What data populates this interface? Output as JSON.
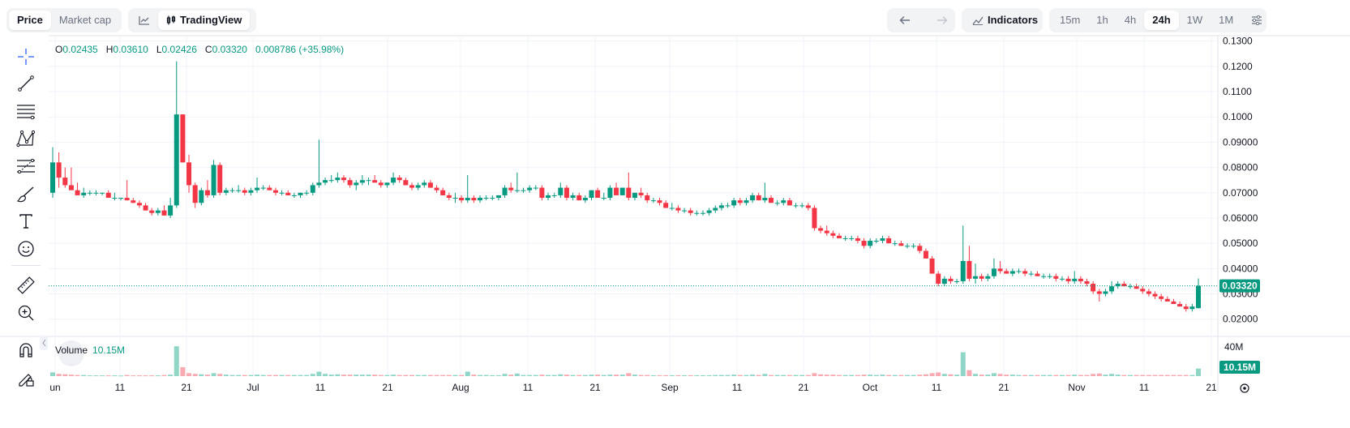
{
  "header": {
    "tabs": [
      {
        "label": "Price",
        "active": true
      },
      {
        "label": "Market cap",
        "active": false
      }
    ],
    "chart_style_label": "TradingView",
    "indicators_label": "Indicators",
    "timeframes": [
      {
        "label": "15m",
        "active": false
      },
      {
        "label": "1h",
        "active": false
      },
      {
        "label": "4h",
        "active": false
      },
      {
        "label": "24h",
        "active": true
      },
      {
        "label": "1W",
        "active": false
      },
      {
        "label": "1M",
        "active": false
      }
    ]
  },
  "toolbar": {
    "icons": [
      "crosshair-icon",
      "trend-line-icon",
      "horizontal-lines-icon",
      "pattern-icon",
      "fib-retracement-icon",
      "brush-icon",
      "text-icon",
      "emoji-icon",
      "ruler-icon",
      "zoom-in-icon",
      "magnet-icon",
      "lock-draw-icon"
    ]
  },
  "legend": {
    "o_label": "O",
    "o": "0.02435",
    "h_label": "H",
    "h": "0.03610",
    "l_label": "L",
    "l": "0.02426",
    "c_label": "C",
    "c": "0.03320",
    "change": "0.008786 (+35.98%)"
  },
  "volume_legend": {
    "label": "Volume",
    "value": "10.15M"
  },
  "colors": {
    "up": "#089981",
    "down": "#f23645",
    "up_vol": "#8fd6c6",
    "down_vol": "#f7aab2",
    "accent": "#2962ff"
  },
  "chart_data": {
    "type": "candlestick",
    "interval": "24h",
    "price_axis": {
      "ticks": [
        "0.1300",
        "0.1200",
        "0.1100",
        "0.1000",
        "0.09000",
        "0.08000",
        "0.07000",
        "0.06000",
        "0.05000",
        "0.04000",
        "0.03000",
        "0.02000"
      ],
      "range": [
        0.0135,
        0.1315
      ]
    },
    "volume_axis": {
      "ticks": [
        "40M"
      ],
      "max": "50M"
    },
    "last_price": "0.03320",
    "last_volume": "10.15M",
    "x_axis_labels": [
      "un",
      "11",
      "21",
      "Jul",
      "11",
      "21",
      "Aug",
      "11",
      "21",
      "Sep",
      "11",
      "21",
      "Oct",
      "11",
      "21",
      "Nov",
      "11",
      "21"
    ],
    "candles": [
      [
        0.07,
        0.088,
        0.068,
        0.082,
        5.0
      ],
      [
        0.082,
        0.086,
        0.072,
        0.076,
        3.0
      ],
      [
        0.076,
        0.08,
        0.072,
        0.073,
        2.5
      ],
      [
        0.073,
        0.08,
        0.071,
        0.071,
        2.0
      ],
      [
        0.071,
        0.074,
        0.069,
        0.069,
        1.5
      ],
      [
        0.069,
        0.072,
        0.068,
        0.07,
        1.5
      ],
      [
        0.07,
        0.071,
        0.069,
        0.07,
        1.0
      ],
      [
        0.07,
        0.071,
        0.069,
        0.07,
        1.0
      ],
      [
        0.07,
        0.07,
        0.069,
        0.07,
        1.0
      ],
      [
        0.07,
        0.071,
        0.068,
        0.068,
        1.0
      ],
      [
        0.068,
        0.07,
        0.067,
        0.068,
        1.0
      ],
      [
        0.068,
        0.068,
        0.067,
        0.068,
        0.8
      ],
      [
        0.068,
        0.075,
        0.067,
        0.067,
        1.5
      ],
      [
        0.067,
        0.068,
        0.066,
        0.066,
        1.0
      ],
      [
        0.066,
        0.067,
        0.064,
        0.065,
        1.0
      ],
      [
        0.065,
        0.066,
        0.063,
        0.063,
        1.0
      ],
      [
        0.063,
        0.064,
        0.061,
        0.062,
        1.0
      ],
      [
        0.062,
        0.064,
        0.061,
        0.063,
        1.0
      ],
      [
        0.063,
        0.065,
        0.061,
        0.061,
        1.5
      ],
      [
        0.061,
        0.068,
        0.06,
        0.065,
        2.0
      ],
      [
        0.065,
        0.122,
        0.064,
        0.101,
        40.0
      ],
      [
        0.101,
        0.101,
        0.082,
        0.082,
        12.0
      ],
      [
        0.082,
        0.085,
        0.07,
        0.073,
        4.0
      ],
      [
        0.073,
        0.074,
        0.064,
        0.066,
        3.0
      ],
      [
        0.066,
        0.072,
        0.065,
        0.071,
        2.5
      ],
      [
        0.071,
        0.075,
        0.068,
        0.069,
        2.0
      ],
      [
        0.069,
        0.083,
        0.068,
        0.081,
        4.0
      ],
      [
        0.081,
        0.082,
        0.069,
        0.07,
        3.0
      ],
      [
        0.07,
        0.072,
        0.069,
        0.071,
        2.0
      ],
      [
        0.071,
        0.072,
        0.07,
        0.071,
        1.5
      ],
      [
        0.071,
        0.073,
        0.07,
        0.071,
        1.5
      ],
      [
        0.071,
        0.072,
        0.069,
        0.07,
        1.5
      ],
      [
        0.07,
        0.072,
        0.069,
        0.071,
        1.5
      ],
      [
        0.071,
        0.076,
        0.07,
        0.072,
        2.0
      ],
      [
        0.072,
        0.073,
        0.071,
        0.072,
        1.5
      ],
      [
        0.072,
        0.073,
        0.071,
        0.071,
        1.5
      ],
      [
        0.071,
        0.072,
        0.069,
        0.07,
        1.5
      ],
      [
        0.07,
        0.071,
        0.069,
        0.07,
        1.5
      ],
      [
        0.07,
        0.071,
        0.069,
        0.069,
        1.5
      ],
      [
        0.069,
        0.07,
        0.068,
        0.069,
        1.5
      ],
      [
        0.069,
        0.07,
        0.068,
        0.07,
        1.5
      ],
      [
        0.07,
        0.071,
        0.069,
        0.07,
        1.5
      ],
      [
        0.07,
        0.074,
        0.069,
        0.073,
        3.0
      ],
      [
        0.073,
        0.091,
        0.072,
        0.074,
        6.0
      ],
      [
        0.074,
        0.076,
        0.073,
        0.075,
        3.0
      ],
      [
        0.075,
        0.077,
        0.074,
        0.075,
        2.0
      ],
      [
        0.075,
        0.078,
        0.074,
        0.076,
        2.5
      ],
      [
        0.076,
        0.077,
        0.074,
        0.075,
        2.0
      ],
      [
        0.075,
        0.076,
        0.072,
        0.073,
        2.0
      ],
      [
        0.073,
        0.075,
        0.071,
        0.074,
        2.0
      ],
      [
        0.074,
        0.077,
        0.073,
        0.075,
        2.0
      ],
      [
        0.075,
        0.076,
        0.073,
        0.075,
        2.0
      ],
      [
        0.075,
        0.077,
        0.074,
        0.074,
        2.0
      ],
      [
        0.074,
        0.075,
        0.072,
        0.073,
        1.5
      ],
      [
        0.073,
        0.074,
        0.072,
        0.074,
        1.5
      ],
      [
        0.074,
        0.078,
        0.073,
        0.076,
        2.0
      ],
      [
        0.076,
        0.077,
        0.074,
        0.075,
        1.5
      ],
      [
        0.075,
        0.076,
        0.073,
        0.073,
        1.5
      ],
      [
        0.073,
        0.074,
        0.071,
        0.072,
        1.5
      ],
      [
        0.072,
        0.074,
        0.071,
        0.073,
        1.5
      ],
      [
        0.073,
        0.075,
        0.072,
        0.074,
        1.5
      ],
      [
        0.074,
        0.075,
        0.072,
        0.072,
        1.5
      ],
      [
        0.072,
        0.073,
        0.07,
        0.071,
        1.5
      ],
      [
        0.071,
        0.072,
        0.069,
        0.069,
        1.5
      ],
      [
        0.069,
        0.07,
        0.067,
        0.068,
        1.5
      ],
      [
        0.068,
        0.07,
        0.066,
        0.068,
        1.5
      ],
      [
        0.068,
        0.069,
        0.066,
        0.067,
        1.5
      ],
      [
        0.067,
        0.077,
        0.066,
        0.068,
        6.0
      ],
      [
        0.068,
        0.069,
        0.066,
        0.067,
        2.0
      ],
      [
        0.067,
        0.069,
        0.066,
        0.068,
        1.5
      ],
      [
        0.068,
        0.069,
        0.067,
        0.068,
        1.5
      ],
      [
        0.068,
        0.069,
        0.067,
        0.068,
        1.2
      ],
      [
        0.068,
        0.069,
        0.067,
        0.069,
        1.2
      ],
      [
        0.069,
        0.073,
        0.068,
        0.072,
        3.0
      ],
      [
        0.072,
        0.074,
        0.07,
        0.071,
        2.0
      ],
      [
        0.071,
        0.078,
        0.07,
        0.071,
        3.5
      ],
      [
        0.071,
        0.072,
        0.07,
        0.071,
        1.5
      ],
      [
        0.071,
        0.073,
        0.07,
        0.072,
        1.5
      ],
      [
        0.072,
        0.073,
        0.071,
        0.072,
        1.5
      ],
      [
        0.072,
        0.073,
        0.067,
        0.068,
        2.0
      ],
      [
        0.068,
        0.07,
        0.067,
        0.069,
        1.5
      ],
      [
        0.069,
        0.07,
        0.068,
        0.069,
        1.5
      ],
      [
        0.069,
        0.074,
        0.068,
        0.072,
        2.5
      ],
      [
        0.072,
        0.073,
        0.067,
        0.068,
        2.0
      ],
      [
        0.068,
        0.07,
        0.067,
        0.069,
        1.5
      ],
      [
        0.069,
        0.07,
        0.067,
        0.067,
        1.5
      ],
      [
        0.067,
        0.069,
        0.066,
        0.068,
        1.5
      ],
      [
        0.068,
        0.071,
        0.067,
        0.071,
        2.0
      ],
      [
        0.071,
        0.072,
        0.068,
        0.068,
        2.0
      ],
      [
        0.068,
        0.07,
        0.067,
        0.068,
        1.5
      ],
      [
        0.068,
        0.073,
        0.067,
        0.072,
        2.0
      ],
      [
        0.072,
        0.074,
        0.069,
        0.069,
        2.0
      ],
      [
        0.069,
        0.072,
        0.069,
        0.072,
        2.0
      ],
      [
        0.072,
        0.078,
        0.067,
        0.068,
        4.0
      ],
      [
        0.068,
        0.07,
        0.067,
        0.07,
        2.0
      ],
      [
        0.07,
        0.072,
        0.068,
        0.069,
        1.5
      ],
      [
        0.069,
        0.07,
        0.066,
        0.067,
        1.5
      ],
      [
        0.067,
        0.068,
        0.066,
        0.067,
        1.2
      ],
      [
        0.067,
        0.068,
        0.065,
        0.066,
        1.2
      ],
      [
        0.066,
        0.067,
        0.064,
        0.064,
        1.2
      ],
      [
        0.064,
        0.066,
        0.063,
        0.064,
        1.2
      ],
      [
        0.064,
        0.065,
        0.062,
        0.063,
        1.2
      ],
      [
        0.063,
        0.064,
        0.062,
        0.063,
        1.2
      ],
      [
        0.063,
        0.064,
        0.061,
        0.062,
        1.2
      ],
      [
        0.062,
        0.063,
        0.061,
        0.062,
        1.2
      ],
      [
        0.062,
        0.063,
        0.061,
        0.062,
        1.2
      ],
      [
        0.062,
        0.064,
        0.061,
        0.063,
        1.2
      ],
      [
        0.063,
        0.065,
        0.062,
        0.064,
        1.5
      ],
      [
        0.064,
        0.066,
        0.063,
        0.065,
        1.5
      ],
      [
        0.065,
        0.066,
        0.064,
        0.065,
        1.5
      ],
      [
        0.065,
        0.068,
        0.064,
        0.067,
        2.0
      ],
      [
        0.067,
        0.068,
        0.065,
        0.066,
        1.5
      ],
      [
        0.066,
        0.068,
        0.065,
        0.067,
        1.5
      ],
      [
        0.067,
        0.07,
        0.066,
        0.069,
        2.0
      ],
      [
        0.069,
        0.07,
        0.067,
        0.067,
        1.5
      ],
      [
        0.067,
        0.074,
        0.066,
        0.068,
        3.0
      ],
      [
        0.068,
        0.069,
        0.066,
        0.066,
        1.5
      ],
      [
        0.066,
        0.067,
        0.065,
        0.066,
        1.5
      ],
      [
        0.066,
        0.068,
        0.065,
        0.067,
        1.5
      ],
      [
        0.067,
        0.068,
        0.065,
        0.065,
        1.5
      ],
      [
        0.065,
        0.066,
        0.064,
        0.065,
        1.5
      ],
      [
        0.065,
        0.066,
        0.064,
        0.065,
        1.5
      ],
      [
        0.065,
        0.066,
        0.063,
        0.064,
        1.5
      ],
      [
        0.064,
        0.065,
        0.055,
        0.056,
        4.0
      ],
      [
        0.056,
        0.057,
        0.054,
        0.055,
        2.5
      ],
      [
        0.055,
        0.057,
        0.053,
        0.054,
        2.0
      ],
      [
        0.054,
        0.055,
        0.052,
        0.053,
        2.0
      ],
      [
        0.053,
        0.054,
        0.052,
        0.052,
        1.5
      ],
      [
        0.052,
        0.053,
        0.051,
        0.052,
        1.5
      ],
      [
        0.052,
        0.053,
        0.051,
        0.052,
        1.5
      ],
      [
        0.052,
        0.053,
        0.05,
        0.051,
        1.5
      ],
      [
        0.051,
        0.052,
        0.048,
        0.049,
        2.0
      ],
      [
        0.049,
        0.052,
        0.048,
        0.051,
        2.0
      ],
      [
        0.051,
        0.052,
        0.05,
        0.051,
        1.5
      ],
      [
        0.051,
        0.053,
        0.05,
        0.052,
        2.0
      ],
      [
        0.052,
        0.053,
        0.05,
        0.05,
        1.5
      ],
      [
        0.05,
        0.051,
        0.049,
        0.05,
        1.5
      ],
      [
        0.05,
        0.051,
        0.049,
        0.049,
        1.5
      ],
      [
        0.049,
        0.05,
        0.048,
        0.049,
        1.5
      ],
      [
        0.049,
        0.05,
        0.048,
        0.049,
        1.5
      ],
      [
        0.049,
        0.05,
        0.046,
        0.047,
        2.0
      ],
      [
        0.047,
        0.048,
        0.044,
        0.044,
        2.5
      ],
      [
        0.044,
        0.045,
        0.038,
        0.038,
        4.0
      ],
      [
        0.038,
        0.039,
        0.033,
        0.034,
        5.0
      ],
      [
        0.034,
        0.037,
        0.033,
        0.036,
        3.0
      ],
      [
        0.036,
        0.037,
        0.034,
        0.035,
        2.5
      ],
      [
        0.035,
        0.036,
        0.034,
        0.035,
        2.0
      ],
      [
        0.035,
        0.057,
        0.034,
        0.043,
        32.0
      ],
      [
        0.043,
        0.049,
        0.035,
        0.036,
        8.0
      ],
      [
        0.036,
        0.042,
        0.034,
        0.037,
        3.0
      ],
      [
        0.037,
        0.038,
        0.035,
        0.036,
        2.0
      ],
      [
        0.036,
        0.038,
        0.035,
        0.037,
        2.0
      ],
      [
        0.037,
        0.044,
        0.036,
        0.04,
        4.0
      ],
      [
        0.04,
        0.043,
        0.038,
        0.039,
        3.0
      ],
      [
        0.039,
        0.04,
        0.038,
        0.038,
        2.0
      ],
      [
        0.038,
        0.04,
        0.037,
        0.039,
        2.0
      ],
      [
        0.039,
        0.04,
        0.038,
        0.039,
        1.5
      ],
      [
        0.039,
        0.04,
        0.037,
        0.038,
        1.5
      ],
      [
        0.038,
        0.039,
        0.037,
        0.038,
        1.5
      ],
      [
        0.038,
        0.039,
        0.037,
        0.037,
        1.5
      ],
      [
        0.037,
        0.038,
        0.036,
        0.037,
        1.5
      ],
      [
        0.037,
        0.038,
        0.036,
        0.037,
        1.5
      ],
      [
        0.037,
        0.038,
        0.035,
        0.036,
        1.5
      ],
      [
        0.036,
        0.037,
        0.035,
        0.036,
        1.5
      ],
      [
        0.036,
        0.037,
        0.034,
        0.035,
        1.5
      ],
      [
        0.035,
        0.039,
        0.034,
        0.036,
        2.0
      ],
      [
        0.036,
        0.037,
        0.034,
        0.035,
        1.5
      ],
      [
        0.035,
        0.036,
        0.033,
        0.034,
        1.5
      ],
      [
        0.034,
        0.035,
        0.03,
        0.031,
        3.0
      ],
      [
        0.031,
        0.032,
        0.027,
        0.03,
        3.5
      ],
      [
        0.03,
        0.032,
        0.029,
        0.031,
        2.0
      ],
      [
        0.031,
        0.035,
        0.03,
        0.033,
        3.0
      ],
      [
        0.033,
        0.035,
        0.032,
        0.034,
        2.0
      ],
      [
        0.034,
        0.035,
        0.033,
        0.033,
        1.5
      ],
      [
        0.033,
        0.034,
        0.032,
        0.033,
        1.5
      ],
      [
        0.033,
        0.034,
        0.032,
        0.032,
        1.5
      ],
      [
        0.032,
        0.033,
        0.03,
        0.031,
        1.5
      ],
      [
        0.031,
        0.032,
        0.029,
        0.03,
        1.5
      ],
      [
        0.03,
        0.031,
        0.028,
        0.029,
        1.5
      ],
      [
        0.029,
        0.03,
        0.027,
        0.028,
        1.5
      ],
      [
        0.028,
        0.029,
        0.027,
        0.027,
        1.5
      ],
      [
        0.027,
        0.028,
        0.026,
        0.026,
        1.5
      ],
      [
        0.026,
        0.027,
        0.025,
        0.025,
        1.5
      ],
      [
        0.025,
        0.026,
        0.023,
        0.024,
        1.5
      ],
      [
        0.024,
        0.026,
        0.023,
        0.025,
        1.5
      ],
      [
        0.02435,
        0.0361,
        0.02426,
        0.0332,
        10.15
      ]
    ]
  }
}
